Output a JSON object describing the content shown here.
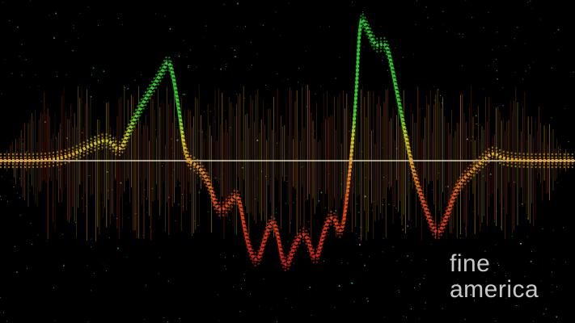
{
  "image": {
    "subject": "waveform",
    "watermark_lines": [
      "fine",
      "america"
    ],
    "colors": {
      "background": "#000000",
      "baseline": "#e8e8c8",
      "peak_high": "#22cc33",
      "mid": "#c8d820",
      "low": "#e8a020",
      "trough": "#dd2a1a",
      "stars_green": "#3fcf6a",
      "stars_white": "#cfd8d0",
      "spikes_top": "#c8a000",
      "spikes_bottom": "#a02800"
    }
  }
}
